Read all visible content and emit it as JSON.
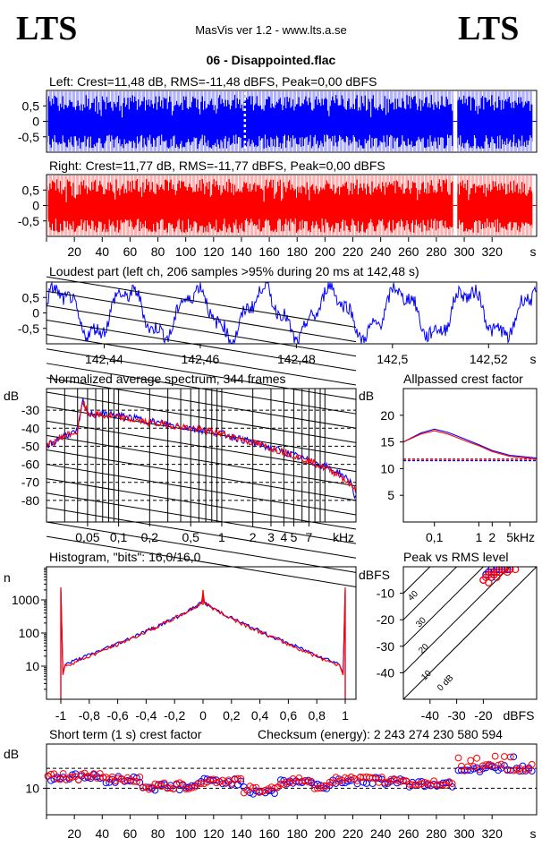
{
  "header": {
    "logo_left": "LTS",
    "logo_right": "LTS",
    "app": "MasVis ver 1.2 - www.lts.a.se",
    "file": "06 - Disappointed.flac"
  },
  "colors": {
    "left": "#0000ff",
    "right": "#ff0000"
  },
  "chart_data": [
    {
      "id": "waveform_left",
      "type": "area",
      "title": "Left: Crest=11,48 dB, RMS=-11,48 dBFS, Peak=0,00 dBFS",
      "yticks": [
        "0,5",
        "0",
        "-0,5"
      ],
      "ylim": [
        -1,
        1
      ],
      "xlim": [
        0,
        352
      ],
      "series": [
        {
          "name": "left",
          "color": "#0000ff",
          "envelope": 1.0
        }
      ],
      "gaps_s": [
        [
          0,
          1
        ],
        [
          292,
          295
        ],
        [
          349,
          352
        ]
      ],
      "marker_s": 142.48
    },
    {
      "id": "waveform_right",
      "type": "area",
      "title": "Right: Crest=11,77 dB, RMS=-11,77 dBFS, Peak=0,00 dBFS",
      "yticks": [
        "0,5",
        "0",
        "-0,5"
      ],
      "ylim": [
        -1,
        1
      ],
      "xlim": [
        0,
        352
      ],
      "series": [
        {
          "name": "right",
          "color": "#ff0000",
          "envelope": 1.0
        }
      ],
      "gaps_s": [
        [
          0,
          1
        ],
        [
          292,
          295
        ],
        [
          349,
          352
        ]
      ],
      "xticks": [
        "20",
        "40",
        "60",
        "80",
        "100",
        "120",
        "140",
        "160",
        "180",
        "200",
        "220",
        "240",
        "260",
        "280",
        "300",
        "320"
      ],
      "xunit": "s"
    },
    {
      "id": "loudest_part",
      "type": "line",
      "title": "Loudest part (left  ch, 206 samples >95% during 20 ms at 142,48 s)",
      "yticks": [
        "0,5",
        "0",
        "-0,5"
      ],
      "ylim": [
        -1,
        1
      ],
      "xlim": [
        142.428,
        142.53
      ],
      "xticks": [
        "142,44",
        "142,46",
        "142,48",
        "142,5",
        "142,52"
      ],
      "xunit": "s",
      "series": [
        {
          "name": "left",
          "color": "#0000ff"
        }
      ]
    },
    {
      "id": "spectrum",
      "type": "line",
      "title": "Normalized average spectrum, 344 frames",
      "ylabel": "dB",
      "ylim": [
        -92,
        -18
      ],
      "yticks": [
        "-30",
        "-40",
        "-50",
        "-60",
        "-70",
        "-80"
      ],
      "xticks": [
        "0,05",
        "0,1",
        "0,2",
        "0,5",
        "1",
        "2",
        "3",
        "4",
        "5",
        "7"
      ],
      "xunit": "kHz",
      "series": [
        {
          "name": "left",
          "color": "#0000ff",
          "points": [
            [
              0.02,
              -50
            ],
            [
              0.03,
              -44
            ],
            [
              0.04,
              -42
            ],
            [
              0.045,
              -25
            ],
            [
              0.05,
              -32
            ],
            [
              0.07,
              -32
            ],
            [
              0.1,
              -33
            ],
            [
              0.2,
              -36
            ],
            [
              0.3,
              -38
            ],
            [
              0.5,
              -40
            ],
            [
              1,
              -43
            ],
            [
              2,
              -48
            ],
            [
              3,
              -51
            ],
            [
              4,
              -53
            ],
            [
              5,
              -55
            ],
            [
              7,
              -58
            ],
            [
              10,
              -61
            ],
            [
              14,
              -65
            ],
            [
              18,
              -70
            ],
            [
              20,
              -80
            ]
          ]
        },
        {
          "name": "right",
          "color": "#ff0000",
          "points": [
            [
              0.02,
              -50
            ],
            [
              0.03,
              -44
            ],
            [
              0.04,
              -42
            ],
            [
              0.045,
              -25
            ],
            [
              0.05,
              -32
            ],
            [
              0.07,
              -33
            ],
            [
              0.1,
              -34
            ],
            [
              0.2,
              -37
            ],
            [
              0.3,
              -38
            ],
            [
              0.5,
              -40
            ],
            [
              1,
              -43
            ],
            [
              2,
              -48
            ],
            [
              3,
              -51
            ],
            [
              4,
              -53
            ],
            [
              5,
              -55
            ],
            [
              7,
              -58
            ],
            [
              10,
              -62
            ],
            [
              14,
              -66
            ],
            [
              18,
              -72
            ],
            [
              20,
              -74
            ]
          ]
        }
      ]
    },
    {
      "id": "allpassed_crest",
      "type": "line",
      "title": "Allpassed crest factor",
      "ylabel": "dB",
      "ylim": [
        0,
        25
      ],
      "yticks": [
        "20",
        "15",
        "10",
        "5"
      ],
      "xticks": [
        "0,1",
        "1",
        "2",
        "5"
      ],
      "xunit": "kHz",
      "series": [
        {
          "name": "left",
          "color": "#0000ff",
          "points": [
            [
              0.02,
              15
            ],
            [
              0.05,
              16.7
            ],
            [
              0.1,
              17.4
            ],
            [
              0.2,
              16.8
            ],
            [
              0.5,
              15.5
            ],
            [
              1,
              14.5
            ],
            [
              2,
              13.4
            ],
            [
              5,
              12.5
            ],
            [
              20,
              12.0
            ]
          ],
          "baseline": 11.5
        },
        {
          "name": "right",
          "color": "#ff0000",
          "points": [
            [
              0.02,
              15
            ],
            [
              0.05,
              16.5
            ],
            [
              0.1,
              17.1
            ],
            [
              0.2,
              16.5
            ],
            [
              0.5,
              15.2
            ],
            [
              1,
              14.3
            ],
            [
              2,
              13.2
            ],
            [
              5,
              12.3
            ],
            [
              20,
              11.8
            ]
          ],
          "baseline": 11.8
        }
      ]
    },
    {
      "id": "histogram",
      "type": "line",
      "title": "Histogram, \"bits\": 16,0/16,0",
      "ylabel": "n",
      "yscale": "log",
      "ylim": [
        1,
        10000
      ],
      "yticks": [
        "1000",
        "100",
        "10"
      ],
      "xticks": [
        "-1",
        "-0,8",
        "-0,6",
        "-0,4",
        "-0,2",
        "0",
        "0,2",
        "0,4",
        "0,6",
        "0,8",
        "1"
      ],
      "series": [
        {
          "name": "left",
          "color": "#0000ff",
          "peak": 900,
          "edge": 10,
          "spike": 2000,
          "center_spike": 1500
        },
        {
          "name": "right",
          "color": "#ff0000",
          "peak": 900,
          "edge": 9,
          "spike": 2400,
          "center_spike": 1800
        }
      ]
    },
    {
      "id": "peak_vs_rms",
      "type": "scatter",
      "title": "Peak vs RMS level",
      "ylabel": "dBFS",
      "xunit": "dBFS",
      "ylim": [
        -50,
        0
      ],
      "xlim": [
        -50,
        0
      ],
      "yticks": [
        "-10",
        "-20",
        "-30",
        "-40"
      ],
      "xticks": [
        "-40",
        "-30",
        "-20"
      ],
      "diagonal_labels": [
        "40",
        "30",
        "20",
        "10",
        "0 dB"
      ],
      "series": [
        {
          "name": "left",
          "color": "#0000ff",
          "points": [
            [
              -20,
              -5
            ],
            [
              -19,
              -3
            ],
            [
              -18,
              -2
            ],
            [
              -17,
              -1
            ],
            [
              -16,
              -2
            ],
            [
              -15,
              -1
            ],
            [
              -14,
              -1
            ],
            [
              -13,
              -1
            ],
            [
              -12,
              -1
            ],
            [
              -11,
              -1
            ],
            [
              -10,
              -1
            ],
            [
              -17,
              -4
            ],
            [
              -16,
              -3
            ]
          ]
        },
        {
          "name": "right",
          "color": "#ff0000",
          "points": [
            [
              -20,
              -5
            ],
            [
              -19,
              -4
            ],
            [
              -18,
              -3
            ],
            [
              -17,
              -2
            ],
            [
              -16,
              -3
            ],
            [
              -15,
              -2
            ],
            [
              -14,
              -2
            ],
            [
              -13,
              -1
            ],
            [
              -12,
              -1
            ],
            [
              -11,
              -2
            ],
            [
              -10,
              -1
            ],
            [
              -8,
              -1
            ],
            [
              -18,
              -6
            ],
            [
              -15,
              -4
            ]
          ]
        }
      ]
    },
    {
      "id": "short_term_crest",
      "type": "scatter",
      "title": "Short term (1 s) crest factor",
      "checksum": "Checksum (energy):  2 243 274 230 580 594",
      "ylabel": "dB",
      "ylim": [
        4,
        20
      ],
      "yticks": [
        "10"
      ],
      "xticks": [
        "20",
        "40",
        "60",
        "80",
        "100",
        "120",
        "140",
        "160",
        "180",
        "200",
        "220",
        "240",
        "260",
        "280",
        "300",
        "320"
      ],
      "xunit": "s",
      "xlim": [
        0,
        352
      ],
      "segments": [
        [
          0,
          12.5
        ],
        [
          40,
          12
        ],
        [
          68,
          10.3
        ],
        [
          108,
          11.5
        ],
        [
          140,
          9.5
        ],
        [
          168,
          11.5
        ],
        [
          192,
          10.5
        ],
        [
          205,
          11.7
        ],
        [
          260,
          11
        ],
        [
          292,
          14.5
        ],
        [
          352,
          14
        ]
      ]
    }
  ]
}
